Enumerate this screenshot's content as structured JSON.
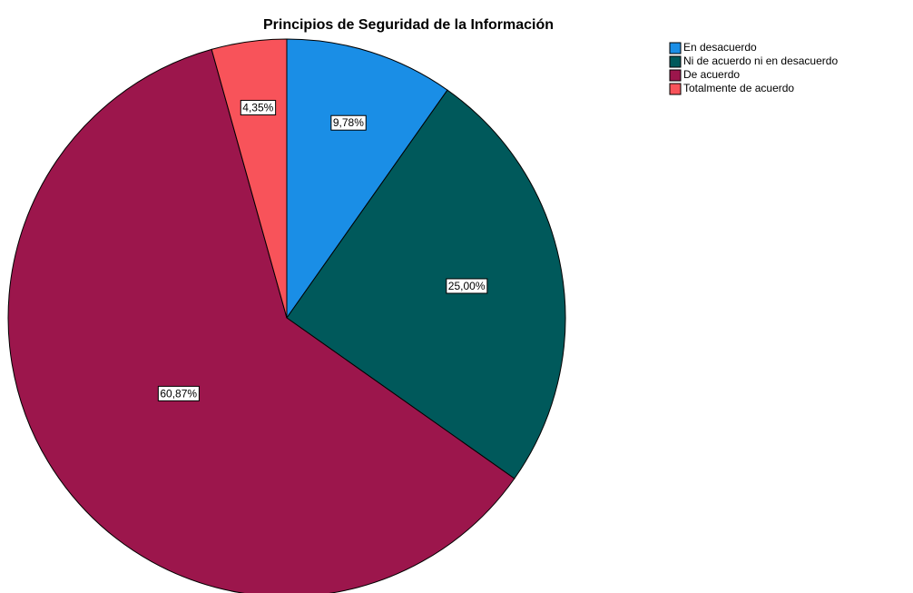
{
  "chart_data": {
    "type": "pie",
    "title": "Principios de Seguridad de la Información",
    "categories": [
      "En desacuerdo",
      "Ni de acuerdo ni en desacuerdo",
      "De acuerdo",
      "Totalmente de acuerdo"
    ],
    "values": [
      9.78,
      25.0,
      60.87,
      4.35
    ],
    "value_labels": [
      "9,78%",
      "25,00%",
      "60,87%",
      "4,35%"
    ],
    "colors": [
      "#1a8ee6",
      "#00595b",
      "#9c164c",
      "#f8535a"
    ],
    "legend": "top-right"
  }
}
